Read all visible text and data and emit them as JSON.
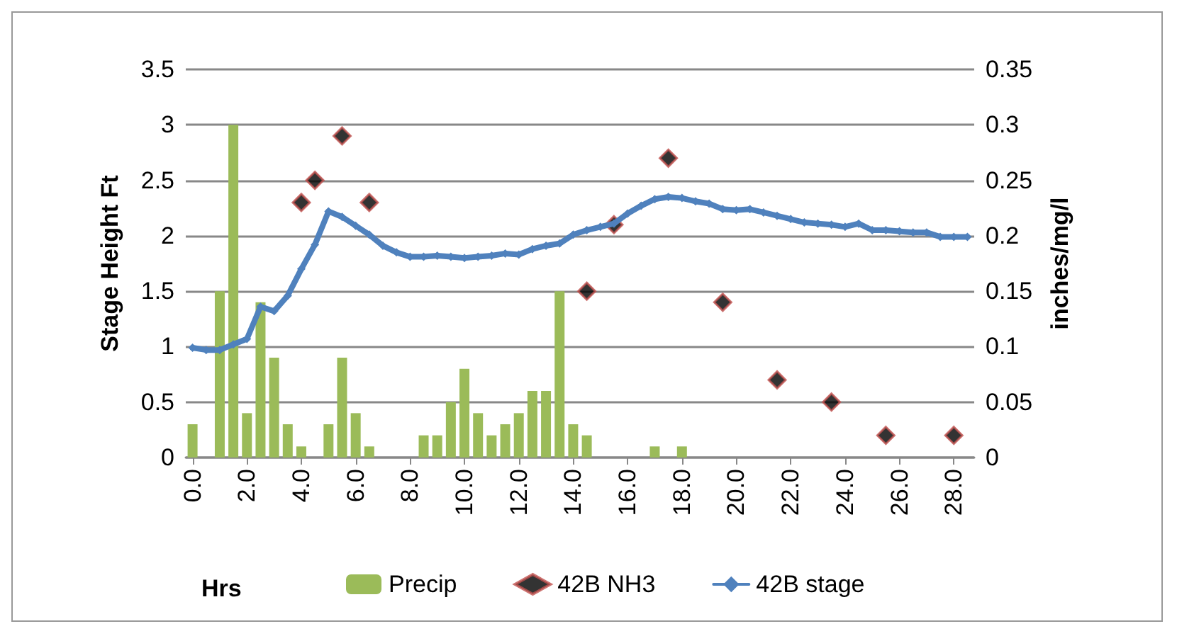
{
  "chart_data": {
    "type": "bar",
    "xlabel": "Hrs",
    "ylabel": "Stage Height Ft",
    "y2label": "inches/mg/l",
    "xlim": [
      -0.25,
      28.75
    ],
    "xticks": [
      {
        "value": 0,
        "label": "0.0"
      },
      {
        "value": 2,
        "label": "2.0"
      },
      {
        "value": 4,
        "label": "4.0"
      },
      {
        "value": 6,
        "label": "6.0"
      },
      {
        "value": 8,
        "label": "8.0"
      },
      {
        "value": 10,
        "label": "10.0"
      },
      {
        "value": 12,
        "label": "12.0"
      },
      {
        "value": 14,
        "label": "14.0"
      },
      {
        "value": 16,
        "label": "16.0"
      },
      {
        "value": 18,
        "label": "18.0"
      },
      {
        "value": 20,
        "label": "20.0"
      },
      {
        "value": 22,
        "label": "22.0"
      },
      {
        "value": 24,
        "label": "24.0"
      },
      {
        "value": 26,
        "label": "26.0"
      },
      {
        "value": 28,
        "label": "28.0"
      }
    ],
    "ylim": [
      0,
      3.5
    ],
    "yticks": [
      0,
      0.5,
      1,
      1.5,
      2,
      2.5,
      3,
      3.5
    ],
    "y2lim": [
      0,
      0.35
    ],
    "y2ticks": [
      0,
      0.05,
      0.1,
      0.15,
      0.2,
      0.25,
      0.3,
      0.35
    ],
    "grid": "y",
    "legend": "bottom",
    "series": [
      {
        "name": "Precip",
        "axis": "y2",
        "color": "#9bbb59",
        "x": [
          0,
          1,
          1.5,
          2,
          2.5,
          3,
          3.5,
          4,
          5,
          5.5,
          6,
          6.5,
          8.5,
          9,
          9.5,
          10,
          10.5,
          11,
          11.5,
          12,
          12.5,
          13,
          13.5,
          14,
          14.5,
          17,
          18
        ],
        "values": [
          0.03,
          0.15,
          0.3,
          0.04,
          0.14,
          0.09,
          0.03,
          0.01,
          0.03,
          0.09,
          0.04,
          0.01,
          0.02,
          0.02,
          0.05,
          0.08,
          0.04,
          0.02,
          0.03,
          0.04,
          0.06,
          0.06,
          0.15,
          0.03,
          0.02,
          0.01,
          0.01
        ]
      },
      {
        "name": "42B NH3",
        "type": "scatter",
        "axis": "y2",
        "color": "#000000",
        "marker": "diamond",
        "x": [
          4,
          4.5,
          5.5,
          6.5,
          14.5,
          15.5,
          17.5,
          19.5,
          21.5,
          23.5,
          25.5,
          28
        ],
        "values": [
          0.23,
          0.25,
          0.29,
          0.23,
          0.15,
          0.21,
          0.27,
          0.14,
          0.07,
          0.05,
          0.02,
          0.02
        ]
      },
      {
        "name": "42B stage",
        "type": "line",
        "color": "#4f81bd",
        "marker": "diamond",
        "line_style": "solid",
        "x": [
          0,
          0.5,
          1,
          1.5,
          2,
          2.5,
          3,
          3.5,
          4,
          4.5,
          5,
          5.5,
          6,
          6.5,
          7,
          7.5,
          8,
          8.5,
          9,
          9.5,
          10,
          10.5,
          11,
          11.5,
          12,
          12.5,
          13,
          13.5,
          14,
          14.5,
          15,
          15.5,
          16,
          16.5,
          17,
          17.5,
          18,
          18.5,
          19,
          19.5,
          20,
          20.5,
          21,
          21.5,
          22,
          22.5,
          23,
          23.5,
          24,
          24.5,
          25,
          25.5,
          26,
          26.5,
          27,
          27.5,
          28,
          28.5
        ],
        "values": [
          0.99,
          0.97,
          0.97,
          1.02,
          1.07,
          1.36,
          1.32,
          1.46,
          1.7,
          1.92,
          2.22,
          2.17,
          2.09,
          2.01,
          1.91,
          1.85,
          1.81,
          1.81,
          1.82,
          1.81,
          1.8,
          1.81,
          1.82,
          1.84,
          1.83,
          1.88,
          1.91,
          1.93,
          2.01,
          2.05,
          2.08,
          2.11,
          2.2,
          2.27,
          2.33,
          2.35,
          2.34,
          2.31,
          2.29,
          2.24,
          2.23,
          2.24,
          2.21,
          2.18,
          2.15,
          2.12,
          2.11,
          2.1,
          2.08,
          2.11,
          2.05,
          2.05,
          2.04,
          2.03,
          2.03,
          1.99,
          1.99,
          1.99
        ]
      }
    ]
  }
}
